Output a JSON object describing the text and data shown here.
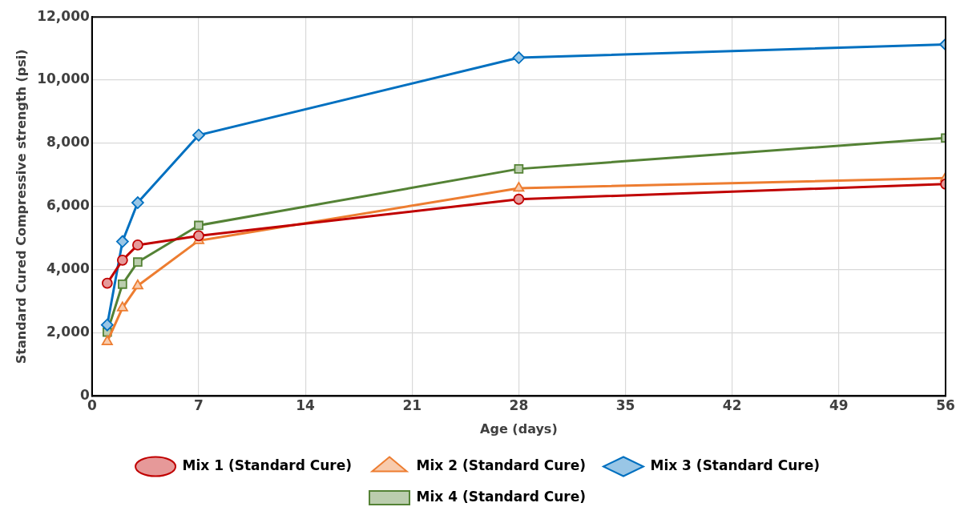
{
  "chart_data": {
    "type": "line",
    "xlabel": "Age (days)",
    "ylabel": "Standard Cured Compressive strength (psi)",
    "x": [
      1,
      2,
      3,
      7,
      28,
      56
    ],
    "series": [
      {
        "name": "Mix 1 (Standard Cure)",
        "color": "#c00000",
        "marker": "circle",
        "values": [
          3570,
          4300,
          4780,
          5070,
          6230,
          6710
        ]
      },
      {
        "name": "Mix 2 (Standard Cure)",
        "color": "#ed7d31",
        "marker": "triangle",
        "values": [
          1720,
          2790,
          3490,
          4920,
          6580,
          6900
        ]
      },
      {
        "name": "Mix 3 (Standard Cure)",
        "color": "#0070c0",
        "marker": "diamond",
        "values": [
          2250,
          4890,
          6120,
          8260,
          10710,
          11130
        ]
      },
      {
        "name": "Mix 4 (Standard Cure)",
        "color": "#548235",
        "marker": "square",
        "values": [
          2020,
          3540,
          4240,
          5400,
          7190,
          8170
        ]
      }
    ],
    "xlim": [
      0,
      56
    ],
    "xticks": [
      0,
      7,
      14,
      21,
      28,
      35,
      42,
      49,
      56
    ],
    "ylim": [
      0,
      12000
    ],
    "yticks": [
      0,
      {
        "value": 2000,
        "label": "2,000"
      },
      {
        "value": 4000,
        "label": "4,000"
      },
      {
        "value": 6000,
        "label": "6,000"
      },
      {
        "value": 8000,
        "label": "8,000"
      },
      {
        "value": 10000,
        "label": "10,000"
      },
      {
        "value": 12000,
        "label": "12,000"
      }
    ],
    "grid": true,
    "legend": "bottom",
    "line_style": "solid"
  }
}
